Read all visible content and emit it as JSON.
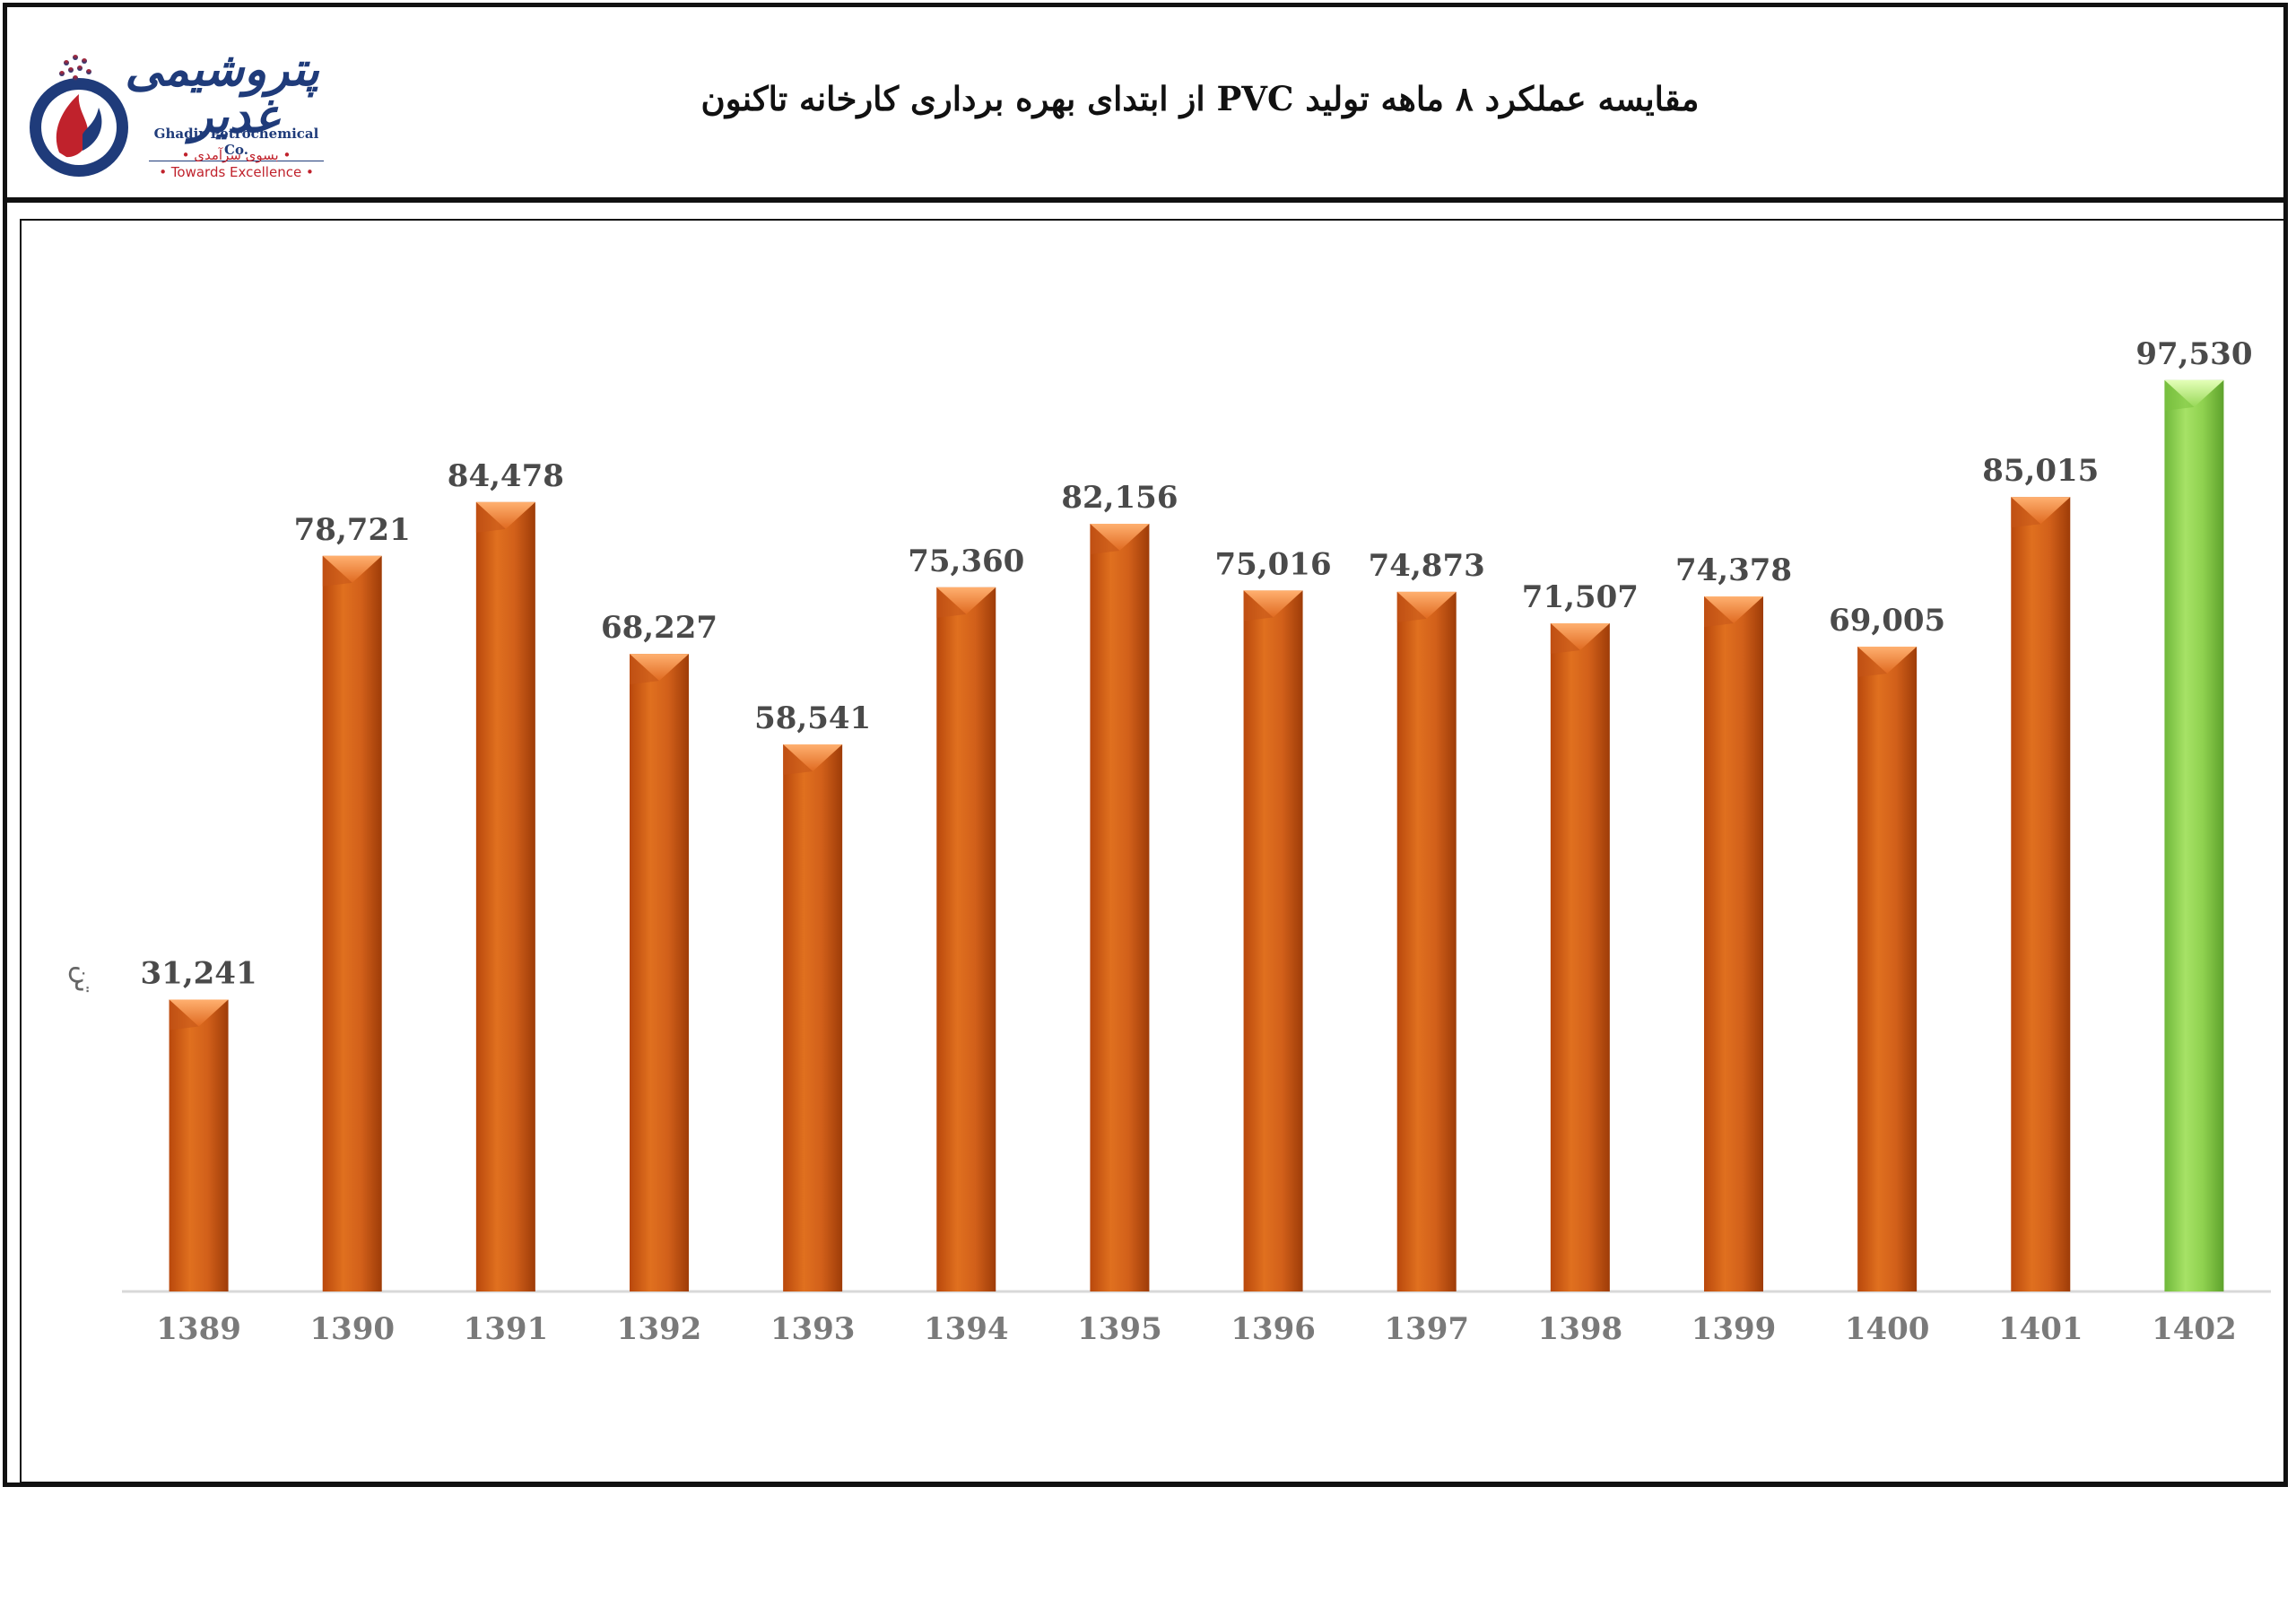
{
  "header": {
    "title": "مقایسه عملکرد ۸ ماهه تولید PVC از ابتدای بهره برداری کارخانه تاکنون",
    "logo": {
      "script_text": "پتروشیمی غدیر",
      "company": "Ghadir Petrochemical Co.",
      "slogan_fa": "• بسوی سرآمدی •",
      "slogan_en": "• Towards Excellence •"
    }
  },
  "colors": {
    "bar_default": "#d2601a",
    "bar_highlight": "#8fd14f",
    "logo_blue": "#1f3b7a",
    "logo_red": "#c0222c"
  },
  "chart_data": {
    "type": "bar",
    "title": "مقایسه عملکرد ۸ ماهه تولید PVC از ابتدای بهره برداری کارخانه تاکنون",
    "xlabel": "",
    "ylabel": "تن",
    "categories": [
      "1389",
      "1390",
      "1391",
      "1392",
      "1393",
      "1394",
      "1395",
      "1396",
      "1397",
      "1398",
      "1399",
      "1400",
      "1401",
      "1402"
    ],
    "values": [
      31241,
      78721,
      84478,
      68227,
      58541,
      75360,
      82156,
      75016,
      74873,
      71507,
      74378,
      69005,
      85015,
      97530
    ],
    "value_labels": [
      "31,241",
      "78,721",
      "84,478",
      "68,227",
      "58,541",
      "75,360",
      "82,156",
      "75,016",
      "74,873",
      "71,507",
      "74,378",
      "69,005",
      "85,015",
      "97,530"
    ],
    "highlight_category": "1402",
    "ylim": [
      0,
      105000
    ],
    "grid": false,
    "legend": "none"
  }
}
